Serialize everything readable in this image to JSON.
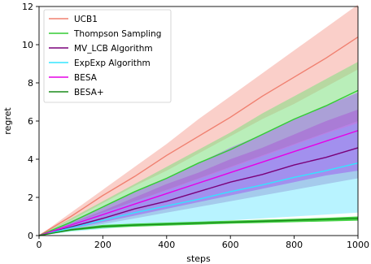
{
  "chart_data": {
    "type": "line",
    "title": "",
    "xlabel": "steps",
    "ylabel": "regret",
    "xlim": [
      0,
      1000
    ],
    "ylim": [
      0,
      12
    ],
    "xticks": [
      0,
      200,
      400,
      600,
      800,
      1000
    ],
    "yticks": [
      0,
      2,
      4,
      6,
      8,
      10,
      12
    ],
    "grid": false,
    "legend_position": "top-left",
    "x": [
      0,
      100,
      200,
      300,
      400,
      500,
      600,
      700,
      800,
      900,
      1000
    ],
    "series": [
      {
        "name": "UCB1",
        "color": "#f08070",
        "band_color": "#f5a79c",
        "values": [
          0,
          1.0,
          2.1,
          3.1,
          4.2,
          5.2,
          6.2,
          7.3,
          8.3,
          9.3,
          10.4
        ],
        "lower": [
          0,
          0.8,
          1.7,
          2.6,
          3.4,
          4.3,
          5.2,
          6.1,
          6.9,
          7.8,
          8.7
        ],
        "upper": [
          0,
          1.2,
          2.4,
          3.6,
          4.8,
          6.1,
          7.3,
          8.5,
          9.7,
          10.9,
          12.1
        ]
      },
      {
        "name": "Thompson Sampling",
        "color": "#33cc33",
        "band_color": "#7fe07f",
        "values": [
          0,
          0.7,
          1.5,
          2.3,
          3.0,
          3.8,
          4.5,
          5.3,
          6.1,
          6.8,
          7.6
        ],
        "lower": [
          0,
          0.6,
          1.2,
          1.8,
          2.4,
          3.0,
          3.6,
          4.2,
          4.8,
          5.4,
          6.0
        ],
        "upper": [
          0,
          0.9,
          1.8,
          2.7,
          3.6,
          4.5,
          5.4,
          6.4,
          7.3,
          8.2,
          9.1
        ]
      },
      {
        "name": "MV_LCB Algorithm",
        "color": "#7a007a",
        "band_color": "#b45cb4",
        "values": [
          0,
          0.45,
          0.9,
          1.4,
          1.8,
          2.3,
          2.8,
          3.2,
          3.7,
          4.1,
          4.6
        ],
        "lower": [
          0,
          0.3,
          0.6,
          0.9,
          1.2,
          1.5,
          1.8,
          2.1,
          2.4,
          2.7,
          3.0
        ],
        "upper": [
          0,
          0.65,
          1.3,
          2.0,
          2.7,
          3.3,
          4.0,
          4.6,
          5.3,
          6.0,
          6.6
        ]
      },
      {
        "name": "ExpExp Algorithm",
        "color": "#33e5ff",
        "band_color": "#7ee9ff",
        "values": [
          0,
          0.4,
          0.8,
          1.2,
          1.55,
          1.9,
          2.3,
          2.65,
          3.05,
          3.4,
          3.8
        ],
        "lower": [
          0,
          0.2,
          0.35,
          0.5,
          0.6,
          0.7,
          0.8,
          0.9,
          1.0,
          1.1,
          1.2
        ],
        "upper": [
          0,
          0.6,
          1.2,
          1.8,
          2.35,
          2.95,
          3.55,
          4.15,
          4.75,
          5.35,
          5.9
        ]
      },
      {
        "name": "BESA",
        "color": "#e600e6",
        "band_color": "#a060f0",
        "values": [
          0,
          0.55,
          1.1,
          1.65,
          2.2,
          2.75,
          3.3,
          3.85,
          4.4,
          4.95,
          5.5
        ],
        "lower": [
          0,
          0.35,
          0.7,
          1.05,
          1.4,
          1.75,
          2.1,
          2.45,
          2.8,
          3.15,
          3.4
        ],
        "upper": [
          0,
          0.75,
          1.5,
          2.3,
          3.0,
          3.8,
          4.6,
          5.3,
          6.1,
          6.8,
          7.5
        ]
      },
      {
        "name": "BESA+",
        "color": "#1a8c1a",
        "band_color": "#33cc33",
        "values": [
          0,
          0.3,
          0.48,
          0.55,
          0.6,
          0.65,
          0.7,
          0.75,
          0.8,
          0.85,
          0.9
        ],
        "lower": [
          0,
          0.25,
          0.4,
          0.47,
          0.52,
          0.57,
          0.62,
          0.66,
          0.7,
          0.74,
          0.78
        ],
        "upper": [
          0,
          0.35,
          0.56,
          0.63,
          0.68,
          0.73,
          0.78,
          0.83,
          0.88,
          0.93,
          1.0
        ]
      }
    ]
  }
}
